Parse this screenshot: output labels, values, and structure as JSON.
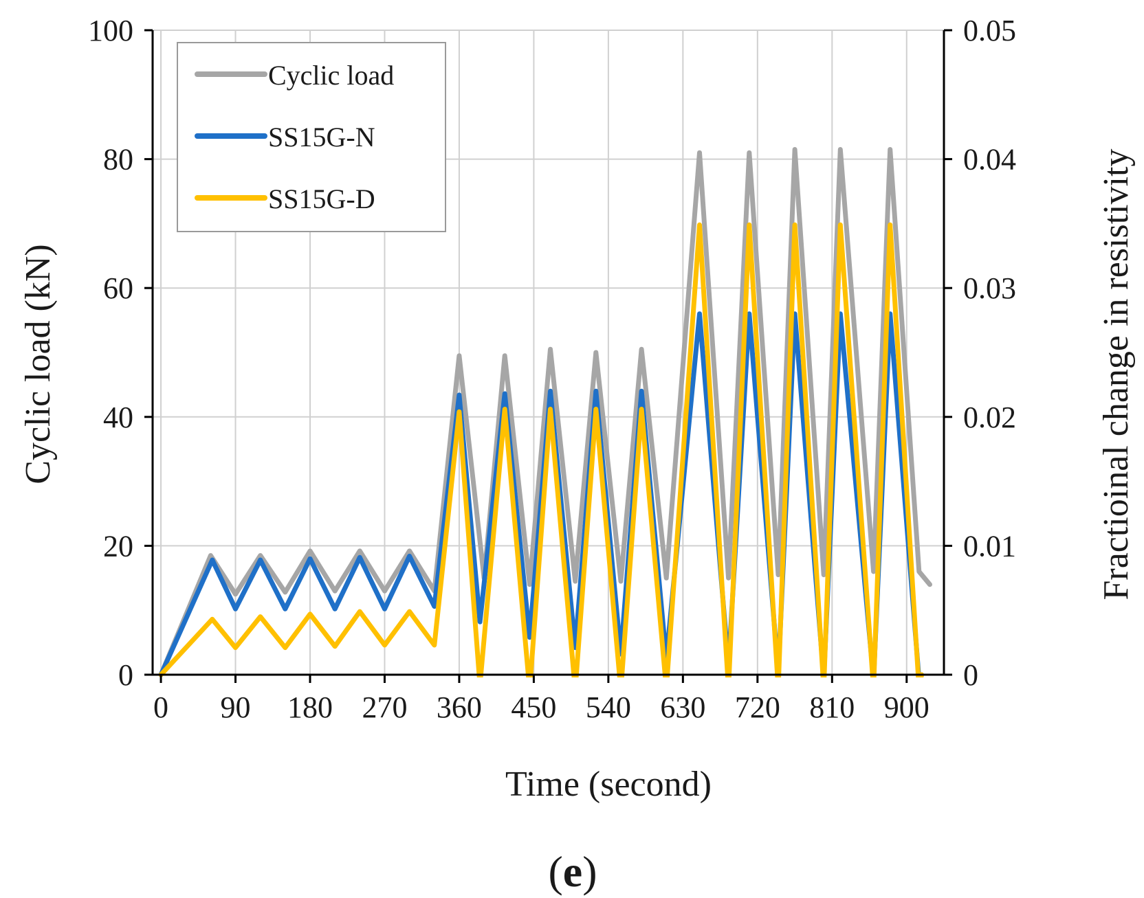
{
  "chart_data": {
    "type": "line",
    "xlabel": "Time (second)",
    "ylabel_left": "Cyclic load (kN)",
    "ylabel_right": "Fractioinal change in resistivity",
    "panel_label_open": "(",
    "panel_label_letter": "e",
    "panel_label_close": ")",
    "xlim": [
      -10,
      945
    ],
    "ylim_left": [
      0,
      100
    ],
    "ylim_right": [
      0,
      0.05
    ],
    "xticks": [
      0,
      90,
      180,
      270,
      360,
      450,
      540,
      630,
      720,
      810,
      900
    ],
    "xtick_labels": [
      "0",
      "90",
      "180",
      "270",
      "360",
      "450",
      "540",
      "630",
      "720",
      "810",
      "900"
    ],
    "yticks_left": [
      0,
      20,
      40,
      60,
      80,
      100
    ],
    "ytick_labels_left": [
      "0",
      "20",
      "40",
      "60",
      "80",
      "100"
    ],
    "yticks_right": [
      0,
      0.01,
      0.02,
      0.03,
      0.04,
      0.05
    ],
    "ytick_labels_right": [
      "0",
      "0.01",
      "0.02",
      "0.03",
      "0.04",
      "0.05"
    ],
    "grid": true,
    "legend_position": "top-left",
    "series": [
      {
        "name": "Cyclic load",
        "axis": "left",
        "color": "#a6a6a6",
        "x": [
          0,
          60,
          90,
          120,
          150,
          180,
          210,
          240,
          270,
          300,
          330,
          360,
          390,
          415,
          445,
          470,
          500,
          525,
          555,
          580,
          610,
          650,
          685,
          710,
          745,
          765,
          800,
          820,
          860,
          880,
          915,
          928
        ],
        "y": [
          0,
          18.5,
          12.5,
          18.5,
          12.8,
          19.2,
          13,
          19.2,
          13,
          19.2,
          13,
          49.5,
          15,
          49.5,
          14,
          50.5,
          14.5,
          50,
          14.5,
          50.5,
          15,
          81,
          15,
          81,
          15.5,
          81.5,
          15.5,
          81.5,
          16,
          81.5,
          16,
          14
        ]
      },
      {
        "name": "SS15G-N",
        "axis": "right",
        "color": "#1f70c8",
        "x": [
          0,
          62,
          90,
          120,
          150,
          180,
          210,
          240,
          270,
          300,
          330,
          360,
          385,
          415,
          445,
          470,
          500,
          525,
          555,
          580,
          610,
          650,
          685,
          710,
          745,
          765,
          800,
          820,
          860,
          880,
          915,
          918
        ],
        "y": [
          0,
          0.0089,
          0.0051,
          0.0089,
          0.0051,
          0.009,
          0.0051,
          0.0091,
          0.0051,
          0.0092,
          0.0053,
          0.0217,
          0.0041,
          0.0218,
          0.0029,
          0.022,
          0.0021,
          0.022,
          0.0016,
          0.022,
          0.0012,
          0.028,
          0.0006,
          0.028,
          0.0001,
          0.028,
          -0.0003,
          0.028,
          -0.0004,
          0.028,
          -0.0004,
          0.0
        ]
      },
      {
        "name": "SS15G-D",
        "axis": "right",
        "color": "#ffc000",
        "x": [
          0,
          62,
          90,
          120,
          150,
          180,
          210,
          240,
          270,
          300,
          330,
          360,
          385,
          415,
          445,
          470,
          500,
          525,
          555,
          580,
          610,
          650,
          685,
          710,
          745,
          765,
          800,
          820,
          860,
          880,
          915,
          918
        ],
        "y": [
          0,
          0.0043,
          0.0021,
          0.0045,
          0.0021,
          0.0047,
          0.0022,
          0.0049,
          0.0023,
          0.0049,
          0.0023,
          0.0204,
          -0.0008,
          0.0206,
          -0.0012,
          0.0206,
          -0.0012,
          0.0206,
          -0.0012,
          0.0206,
          -0.0011,
          0.0349,
          -0.0011,
          0.0349,
          -0.0011,
          0.0349,
          -0.0011,
          0.0349,
          -0.0011,
          0.0349,
          -0.0011,
          0.0
        ]
      }
    ]
  }
}
